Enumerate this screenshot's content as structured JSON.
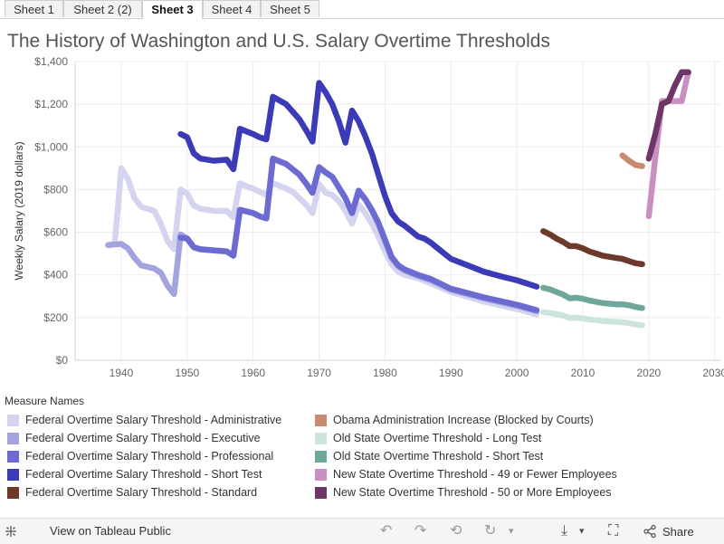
{
  "tabs": [
    {
      "label": "Sheet 1",
      "active": false
    },
    {
      "label": "Sheet 2 (2)",
      "active": false
    },
    {
      "label": "Sheet 3",
      "active": true
    },
    {
      "label": "Sheet 4",
      "active": false
    },
    {
      "label": "Sheet 5",
      "active": false
    }
  ],
  "legend": {
    "title": "Measure Names"
  },
  "footer": {
    "view_label": "View on Tableau Public",
    "share_label": "Share",
    "icons": [
      "tableau-icon",
      "undo-icon",
      "redo-icon",
      "revert-icon",
      "refresh-icon",
      "download-icon",
      "fullscreen-icon",
      "share-icon"
    ]
  },
  "chart_data": {
    "type": "line",
    "title": "The History of Washington and U.S. Salary Overtime Thresholds",
    "ylabel": "Weekly Salary (2019 dollars)",
    "xlabel": "",
    "xlim": [
      1933,
      2031
    ],
    "ylim": [
      0,
      1400
    ],
    "x_ticks": [
      1940,
      1950,
      1960,
      1970,
      1980,
      1990,
      2000,
      2010,
      2020,
      2030
    ],
    "y_ticks": [
      0,
      200,
      400,
      600,
      800,
      1000,
      1200,
      1400
    ],
    "y_tick_labels": [
      "$0",
      "$200",
      "$400",
      "$600",
      "$800",
      "$1,000",
      "$1,200",
      "$1,400"
    ],
    "grid": true,
    "legend_position": "bottom",
    "series": [
      {
        "name": "Federal Overtime Salary Threshold - Administrative",
        "color": "#d4d4f0",
        "points": [
          [
            1938,
            540
          ],
          [
            1939,
            545
          ],
          [
            1940,
            900
          ],
          [
            1941,
            850
          ],
          [
            1942,
            760
          ],
          [
            1943,
            720
          ],
          [
            1945,
            700
          ],
          [
            1946,
            640
          ],
          [
            1947,
            560
          ],
          [
            1948,
            520
          ],
          [
            1949,
            800
          ],
          [
            1950,
            780
          ],
          [
            1951,
            725
          ],
          [
            1952,
            710
          ],
          [
            1954,
            700
          ],
          [
            1956,
            700
          ],
          [
            1957,
            670
          ],
          [
            1958,
            830
          ],
          [
            1959,
            815
          ],
          [
            1960,
            805
          ],
          [
            1961,
            790
          ],
          [
            1962,
            775
          ],
          [
            1963,
            830
          ],
          [
            1965,
            805
          ],
          [
            1966,
            790
          ],
          [
            1967,
            760
          ],
          [
            1968,
            730
          ],
          [
            1969,
            690
          ],
          [
            1970,
            825
          ],
          [
            1971,
            785
          ],
          [
            1972,
            775
          ],
          [
            1973,
            745
          ],
          [
            1974,
            700
          ],
          [
            1975,
            640
          ],
          [
            1976,
            730
          ],
          [
            1977,
            690
          ],
          [
            1978,
            640
          ],
          [
            1979,
            580
          ],
          [
            1980,
            510
          ],
          [
            1981,
            450
          ],
          [
            1982,
            415
          ],
          [
            1983,
            400
          ],
          [
            1985,
            385
          ],
          [
            1987,
            360
          ],
          [
            1990,
            320
          ],
          [
            1995,
            275
          ],
          [
            2000,
            240
          ],
          [
            2003,
            215
          ]
        ]
      },
      {
        "name": "Federal Overtime Salary Threshold - Executive",
        "color": "#a3a3dd",
        "points": [
          [
            1938,
            540
          ],
          [
            1940,
            545
          ],
          [
            1941,
            525
          ],
          [
            1942,
            480
          ],
          [
            1943,
            445
          ],
          [
            1945,
            430
          ],
          [
            1946,
            410
          ],
          [
            1947,
            350
          ],
          [
            1948,
            310
          ],
          [
            1949,
            590
          ],
          [
            1950,
            570
          ],
          [
            1951,
            530
          ],
          [
            1952,
            520
          ],
          [
            1954,
            515
          ],
          [
            1956,
            510
          ],
          [
            1957,
            490
          ],
          [
            1958,
            705
          ],
          [
            1960,
            690
          ],
          [
            1961,
            675
          ],
          [
            1962,
            665
          ],
          [
            1963,
            945
          ],
          [
            1965,
            920
          ],
          [
            1967,
            870
          ],
          [
            1968,
            830
          ],
          [
            1969,
            785
          ],
          [
            1970,
            905
          ],
          [
            1971,
            880
          ],
          [
            1972,
            860
          ],
          [
            1973,
            810
          ],
          [
            1974,
            760
          ],
          [
            1975,
            690
          ],
          [
            1976,
            790
          ],
          [
            1977,
            755
          ],
          [
            1978,
            700
          ],
          [
            1979,
            640
          ],
          [
            1980,
            560
          ],
          [
            1981,
            480
          ],
          [
            1982,
            440
          ],
          [
            1983,
            420
          ],
          [
            1985,
            395
          ],
          [
            1987,
            375
          ],
          [
            1990,
            330
          ],
          [
            1995,
            290
          ],
          [
            2000,
            255
          ],
          [
            2003,
            230
          ]
        ]
      },
      {
        "name": "Federal Overtime Salary Threshold - Professional",
        "color": "#6b6bd1",
        "points": [
          [
            1949,
            575
          ],
          [
            1950,
            570
          ],
          [
            1951,
            530
          ],
          [
            1952,
            520
          ],
          [
            1954,
            515
          ],
          [
            1956,
            510
          ],
          [
            1957,
            490
          ],
          [
            1958,
            705
          ],
          [
            1960,
            690
          ],
          [
            1961,
            675
          ],
          [
            1962,
            665
          ],
          [
            1963,
            945
          ],
          [
            1965,
            920
          ],
          [
            1967,
            870
          ],
          [
            1968,
            830
          ],
          [
            1969,
            785
          ],
          [
            1970,
            905
          ],
          [
            1971,
            880
          ],
          [
            1972,
            860
          ],
          [
            1973,
            810
          ],
          [
            1974,
            760
          ],
          [
            1975,
            690
          ],
          [
            1976,
            795
          ],
          [
            1977,
            755
          ],
          [
            1978,
            705
          ],
          [
            1979,
            645
          ],
          [
            1980,
            565
          ],
          [
            1981,
            485
          ],
          [
            1982,
            445
          ],
          [
            1983,
            425
          ],
          [
            1985,
            400
          ],
          [
            1987,
            380
          ],
          [
            1990,
            335
          ],
          [
            1995,
            295
          ],
          [
            2000,
            260
          ],
          [
            2003,
            235
          ]
        ]
      },
      {
        "name": "Federal Overtime Salary Threshold - Short Test",
        "color": "#3b3bb8",
        "points": [
          [
            1949,
            1060
          ],
          [
            1950,
            1045
          ],
          [
            1951,
            970
          ],
          [
            1952,
            945
          ],
          [
            1954,
            935
          ],
          [
            1956,
            940
          ],
          [
            1957,
            895
          ],
          [
            1958,
            1085
          ],
          [
            1960,
            1060
          ],
          [
            1961,
            1045
          ],
          [
            1962,
            1035
          ],
          [
            1963,
            1235
          ],
          [
            1965,
            1200
          ],
          [
            1967,
            1130
          ],
          [
            1968,
            1080
          ],
          [
            1969,
            1025
          ],
          [
            1970,
            1300
          ],
          [
            1971,
            1255
          ],
          [
            1972,
            1200
          ],
          [
            1973,
            1120
          ],
          [
            1974,
            1020
          ],
          [
            1975,
            1170
          ],
          [
            1976,
            1120
          ],
          [
            1977,
            1050
          ],
          [
            1978,
            970
          ],
          [
            1979,
            870
          ],
          [
            1980,
            770
          ],
          [
            1981,
            690
          ],
          [
            1982,
            650
          ],
          [
            1983,
            630
          ],
          [
            1984,
            605
          ],
          [
            1985,
            580
          ],
          [
            1986,
            570
          ],
          [
            1987,
            550
          ],
          [
            1988,
            525
          ],
          [
            1990,
            475
          ],
          [
            1995,
            415
          ],
          [
            1998,
            390
          ],
          [
            2000,
            375
          ],
          [
            2003,
            345
          ]
        ]
      },
      {
        "name": "Federal Overtime Salary Threshold - Standard",
        "color": "#6b3a2a",
        "points": [
          [
            2004,
            605
          ],
          [
            2005,
            590
          ],
          [
            2006,
            570
          ],
          [
            2007,
            555
          ],
          [
            2008,
            535
          ],
          [
            2009,
            535
          ],
          [
            2010,
            525
          ],
          [
            2011,
            510
          ],
          [
            2012,
            500
          ],
          [
            2013,
            490
          ],
          [
            2014,
            485
          ],
          [
            2015,
            480
          ],
          [
            2016,
            475
          ],
          [
            2017,
            465
          ],
          [
            2018,
            455
          ],
          [
            2019,
            450
          ]
        ]
      },
      {
        "name": "Obama Administration Increase (Blocked by Courts)",
        "color": "#c98a72",
        "points": [
          [
            2016,
            960
          ],
          [
            2017,
            935
          ],
          [
            2018,
            915
          ],
          [
            2019,
            910
          ]
        ]
      },
      {
        "name": "Old State Overtime Threshold - Long Test",
        "color": "#cde3de",
        "points": [
          [
            2004,
            225
          ],
          [
            2005,
            222
          ],
          [
            2006,
            217
          ],
          [
            2007,
            210
          ],
          [
            2008,
            198
          ],
          [
            2009,
            200
          ],
          [
            2010,
            196
          ],
          [
            2011,
            191
          ],
          [
            2012,
            188
          ],
          [
            2013,
            184
          ],
          [
            2014,
            182
          ],
          [
            2015,
            180
          ],
          [
            2016,
            178
          ],
          [
            2017,
            174
          ],
          [
            2018,
            168
          ],
          [
            2019,
            164
          ]
        ]
      },
      {
        "name": "Old State Overtime Threshold - Short Test",
        "color": "#6fa89a",
        "points": [
          [
            2004,
            340
          ],
          [
            2005,
            332
          ],
          [
            2006,
            320
          ],
          [
            2007,
            308
          ],
          [
            2008,
            290
          ],
          [
            2009,
            293
          ],
          [
            2010,
            288
          ],
          [
            2011,
            280
          ],
          [
            2012,
            274
          ],
          [
            2013,
            268
          ],
          [
            2014,
            265
          ],
          [
            2015,
            262
          ],
          [
            2016,
            262
          ],
          [
            2017,
            258
          ],
          [
            2018,
            250
          ],
          [
            2019,
            245
          ]
        ]
      },
      {
        "name": "New State Overtime Threshold - 49 or Fewer Employees",
        "color": "#c98fc0",
        "points": [
          [
            2020,
            675
          ],
          [
            2021,
            950
          ],
          [
            2022,
            1215
          ],
          [
            2023,
            1215
          ],
          [
            2024,
            1215
          ],
          [
            2025,
            1215
          ],
          [
            2026,
            1350
          ]
        ]
      },
      {
        "name": "New State Overtime Threshold - 50 or More Employees",
        "color": "#6e3566",
        "points": [
          [
            2020,
            945
          ],
          [
            2021,
            1060
          ],
          [
            2022,
            1200
          ],
          [
            2023,
            1215
          ],
          [
            2024,
            1290
          ],
          [
            2025,
            1350
          ],
          [
            2026,
            1350
          ]
        ]
      }
    ]
  }
}
